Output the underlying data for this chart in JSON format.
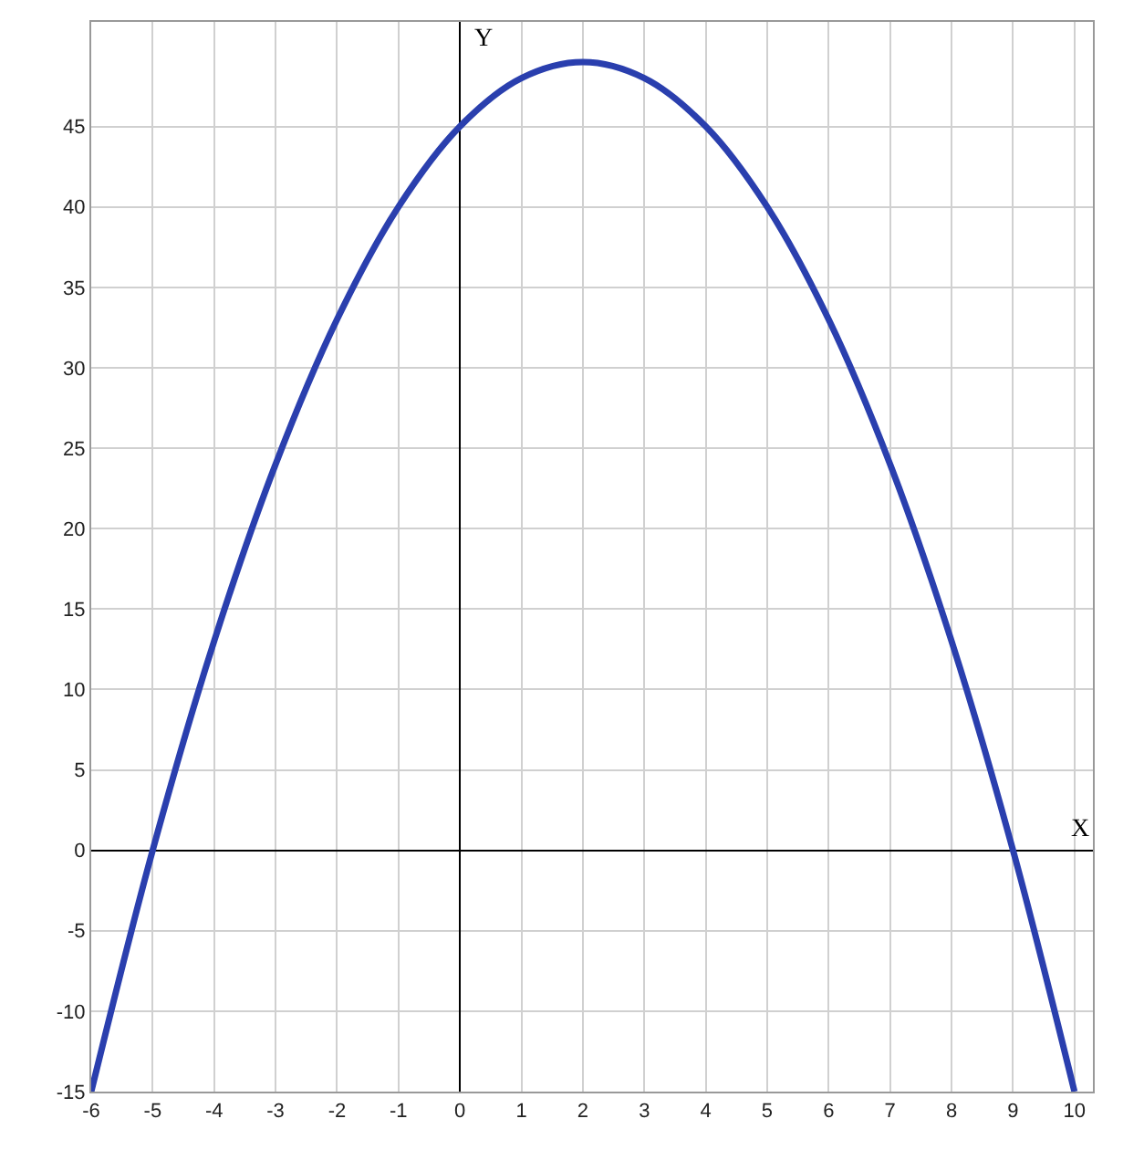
{
  "chart_data": {
    "type": "line",
    "xlabel": "X",
    "ylabel": "Y",
    "x": [
      -6,
      -5,
      -4,
      -3,
      -2,
      -1,
      0,
      1,
      2,
      3,
      4,
      5,
      6,
      7,
      8,
      9,
      10
    ],
    "series": [
      {
        "color": "#2a3fae",
        "values": [
          -15,
          0,
          13,
          24,
          33,
          40,
          45,
          48,
          49,
          48,
          45,
          40,
          33,
          24,
          13,
          0,
          -15
        ]
      }
    ],
    "xlim": [
      -6,
      10.3
    ],
    "ylim": [
      -15,
      51.5
    ],
    "xticks": [
      -6,
      -5,
      -4,
      -3,
      -2,
      -1,
      0,
      1,
      2,
      3,
      4,
      5,
      6,
      7,
      8,
      9,
      10
    ],
    "yticks": [
      -15,
      -10,
      -5,
      0,
      5,
      10,
      15,
      20,
      25,
      30,
      35,
      40,
      45
    ],
    "grid": true,
    "marker": "none",
    "line_style": "solid"
  }
}
